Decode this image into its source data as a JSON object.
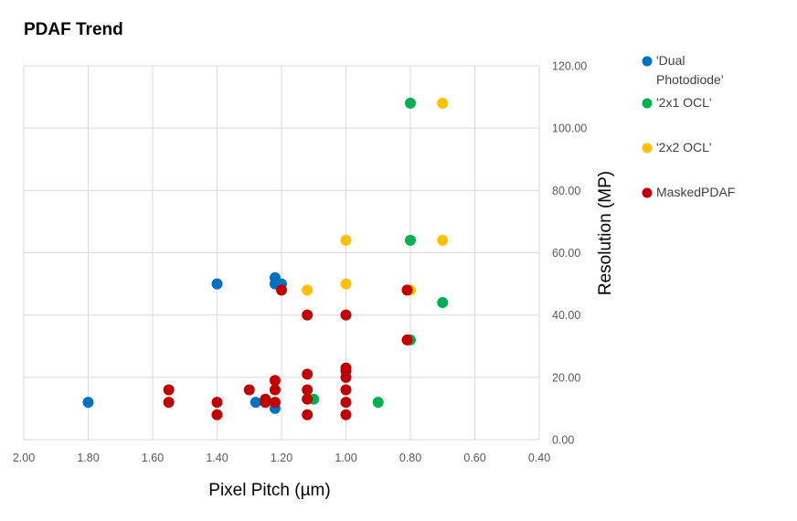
{
  "chart_data": {
    "type": "scatter",
    "title": "PDAF Trend",
    "xlabel": "Pixel Pitch (µm)",
    "ylabel": "Resolution (MP)",
    "xlim": [
      2.0,
      0.4
    ],
    "ylim": [
      0,
      120
    ],
    "x_reversed": true,
    "y_axis_side": "right",
    "grid": true,
    "legend_position": "right",
    "x_ticks": [
      "2.00",
      "1.80",
      "1.60",
      "1.40",
      "1.20",
      "1.00",
      "0.80",
      "0.60",
      "0.40"
    ],
    "y_ticks": [
      "0.00",
      "20.00",
      "40.00",
      "60.00",
      "80.00",
      "100.00",
      "120.00"
    ],
    "series": [
      {
        "name": "'Dual Photodiode'",
        "name_lines": [
          "'Dual",
          "Photodiode'"
        ],
        "color": "#0070c0",
        "points": [
          [
            1.8,
            12
          ],
          [
            1.4,
            50
          ],
          [
            1.28,
            12
          ],
          [
            1.25,
            12
          ],
          [
            1.22,
            52
          ],
          [
            1.22,
            50
          ],
          [
            1.2,
            50
          ],
          [
            1.22,
            10
          ]
        ]
      },
      {
        "name": "'2x1 OCL'",
        "name_lines": [
          "'2x1 OCL'"
        ],
        "color": "#00b050",
        "points": [
          [
            0.8,
            108
          ],
          [
            0.8,
            64
          ],
          [
            0.7,
            44
          ],
          [
            0.8,
            32
          ],
          [
            1.1,
            13
          ],
          [
            0.9,
            12
          ]
        ]
      },
      {
        "name": "'2x2 OCL'",
        "name_lines": [
          "'2x2 OCL'"
        ],
        "color": "#ffc000",
        "points": [
          [
            0.7,
            108
          ],
          [
            1.0,
            64
          ],
          [
            0.7,
            64
          ],
          [
            1.12,
            48
          ],
          [
            1.0,
            50
          ],
          [
            0.8,
            48
          ]
        ]
      },
      {
        "name": "MaskedPDAF",
        "name_lines": [
          "MaskedPDAF"
        ],
        "color": "#c00000",
        "points": [
          [
            1.2,
            48
          ],
          [
            1.12,
            40
          ],
          [
            1.0,
            40
          ],
          [
            0.81,
            48
          ],
          [
            0.81,
            32
          ],
          [
            1.55,
            16
          ],
          [
            1.55,
            12
          ],
          [
            1.4,
            12
          ],
          [
            1.4,
            8
          ],
          [
            1.3,
            16
          ],
          [
            1.25,
            13
          ],
          [
            1.25,
            12
          ],
          [
            1.22,
            19
          ],
          [
            1.22,
            16
          ],
          [
            1.22,
            12
          ],
          [
            1.12,
            21
          ],
          [
            1.12,
            16
          ],
          [
            1.12,
            13
          ],
          [
            1.12,
            8
          ],
          [
            1.0,
            23
          ],
          [
            1.0,
            22
          ],
          [
            1.0,
            20
          ],
          [
            1.0,
            16
          ],
          [
            1.0,
            12
          ],
          [
            1.0,
            8
          ]
        ]
      }
    ]
  }
}
